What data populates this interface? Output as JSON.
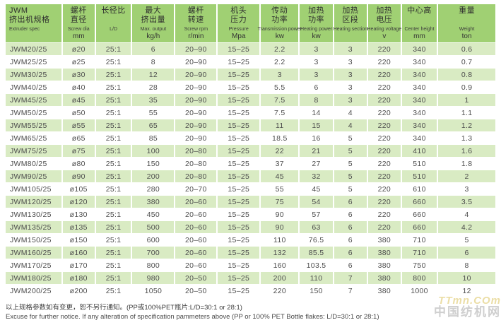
{
  "table": {
    "columns": [
      {
        "key": "extruder-spec",
        "cn": [
          "JWM",
          "挤出机规格"
        ],
        "en": "Extruder spec",
        "unit": ""
      },
      {
        "key": "screw-dia",
        "cn": [
          "螺杆",
          "直径"
        ],
        "en": "Screw dia",
        "unit": "mm"
      },
      {
        "key": "ld-ratio",
        "cn": [
          "长径比"
        ],
        "en": "L/D",
        "unit": ""
      },
      {
        "key": "max-output",
        "cn": [
          "最大",
          "挤出量"
        ],
        "en": "Max. output",
        "unit": "kg/h"
      },
      {
        "key": "screw-rpm",
        "cn": [
          "螺杆",
          "转速"
        ],
        "en": "Screw rpm",
        "unit": "r/min"
      },
      {
        "key": "pressure",
        "cn": [
          "机头",
          "压力"
        ],
        "en": "Pressure",
        "unit": "Mpa"
      },
      {
        "key": "transmission-power",
        "cn": [
          "传动",
          "功率"
        ],
        "en": "Transmission power",
        "unit": "kw"
      },
      {
        "key": "heating-power",
        "cn": [
          "加热",
          "功率"
        ],
        "en": "Heating power",
        "unit": "kw"
      },
      {
        "key": "heating-section",
        "cn": [
          "加热",
          "区段"
        ],
        "en": "Heating section",
        "unit": ""
      },
      {
        "key": "heating-voltage",
        "cn": [
          "加热",
          "电压"
        ],
        "en": "Heating voltage",
        "unit": "v"
      },
      {
        "key": "center-height",
        "cn": [
          "中心高"
        ],
        "en": "Center height",
        "unit": "mm"
      },
      {
        "key": "weight",
        "cn": [
          "重量"
        ],
        "en": "Weight",
        "unit": "ton"
      }
    ],
    "rows": [
      [
        "JWM20/25",
        "ø20",
        "25:1",
        "6",
        "20–90",
        "15–25",
        "2.2",
        "3",
        "3",
        "220",
        "340",
        "0.6"
      ],
      [
        "JWM25/25",
        "ø25",
        "25:1",
        "8",
        "20–90",
        "15–25",
        "2.2",
        "3",
        "3",
        "220",
        "340",
        "0.7"
      ],
      [
        "JWM30/25",
        "ø30",
        "25:1",
        "12",
        "20–90",
        "15–25",
        "3",
        "3",
        "3",
        "220",
        "340",
        "0.8"
      ],
      [
        "JWM40/25",
        "ø40",
        "25:1",
        "28",
        "20–90",
        "15–25",
        "5.5",
        "6",
        "3",
        "220",
        "340",
        "0.9"
      ],
      [
        "JWM45/25",
        "ø45",
        "25:1",
        "35",
        "20–90",
        "15–25",
        "7.5",
        "8",
        "3",
        "220",
        "340",
        "1"
      ],
      [
        "JWM50/25",
        "ø50",
        "25:1",
        "55",
        "20–90",
        "15–25",
        "7.5",
        "14",
        "4",
        "220",
        "340",
        "1.1"
      ],
      [
        "JWM55/25",
        "ø55",
        "25:1",
        "65",
        "20–90",
        "15–25",
        "11",
        "15",
        "4",
        "220",
        "340",
        "1.2"
      ],
      [
        "JWM65/25",
        "ø65",
        "25:1",
        "85",
        "20–90",
        "15–25",
        "18.5",
        "16",
        "5",
        "220",
        "340",
        "1.3"
      ],
      [
        "JWM75/25",
        "ø75",
        "25:1",
        "100",
        "20–80",
        "15–25",
        "22",
        "21",
        "5",
        "220",
        "410",
        "1.6"
      ],
      [
        "JWM80/25",
        "ø80",
        "25:1",
        "150",
        "20–80",
        "15–25",
        "37",
        "27",
        "5",
        "220",
        "510",
        "1.8"
      ],
      [
        "JWM90/25",
        "ø90",
        "25:1",
        "200",
        "20–80",
        "15–25",
        "45",
        "32",
        "5",
        "220",
        "510",
        "2"
      ],
      [
        "JWM105/25",
        "ø105",
        "25:1",
        "280",
        "20–70",
        "15–25",
        "55",
        "45",
        "5",
        "220",
        "610",
        "3"
      ],
      [
        "JWM120/25",
        "ø120",
        "25:1",
        "380",
        "20–60",
        "15–25",
        "75",
        "54",
        "6",
        "220",
        "660",
        "3.5"
      ],
      [
        "JWM130/25",
        "ø130",
        "25:1",
        "450",
        "20–60",
        "15–25",
        "90",
        "57",
        "6",
        "220",
        "660",
        "4"
      ],
      [
        "JWM135/25",
        "ø135",
        "25:1",
        "500",
        "20–60",
        "15–25",
        "90",
        "63",
        "6",
        "220",
        "660",
        "4.2"
      ],
      [
        "JWM150/25",
        "ø150",
        "25:1",
        "600",
        "20–60",
        "15–25",
        "110",
        "76.5",
        "6",
        "380",
        "710",
        "5"
      ],
      [
        "JWM160/25",
        "ø160",
        "25:1",
        "700",
        "20–60",
        "15–25",
        "132",
        "85.5",
        "6",
        "380",
        "710",
        "6"
      ],
      [
        "JWM170/25",
        "ø170",
        "25:1",
        "800",
        "20–60",
        "15–25",
        "160",
        "103.5",
        "6",
        "380",
        "750",
        "8"
      ],
      [
        "JWM180/25",
        "ø180",
        "25:1",
        "980",
        "20–50",
        "15–25",
        "200",
        "110",
        "7",
        "380",
        "800",
        "10"
      ],
      [
        "JWM200/25",
        "ø200",
        "25:1",
        "1050",
        "20–50",
        "15–25",
        "220",
        "150",
        "7",
        "380",
        "1000",
        "12"
      ]
    ]
  },
  "footer": {
    "cn": "以上规格参数如有变更，恕不另行通知。(PP或100%PET瓶片:L/D=30:1 or 28:1)",
    "en": "Excuse for further notice. If any alteration of specification pammeters above (PP or 100% PET Bottle flakes: L/D=30:1 or 28:1)"
  },
  "watermark": {
    "line1": "TTmn.COm",
    "line2": "中国纺机网"
  },
  "colors": {
    "header_bg": "#a0d073",
    "stripe_bg": "#d9ebc3",
    "row_bg": "#ffffff",
    "text": "#4d4d4d"
  }
}
